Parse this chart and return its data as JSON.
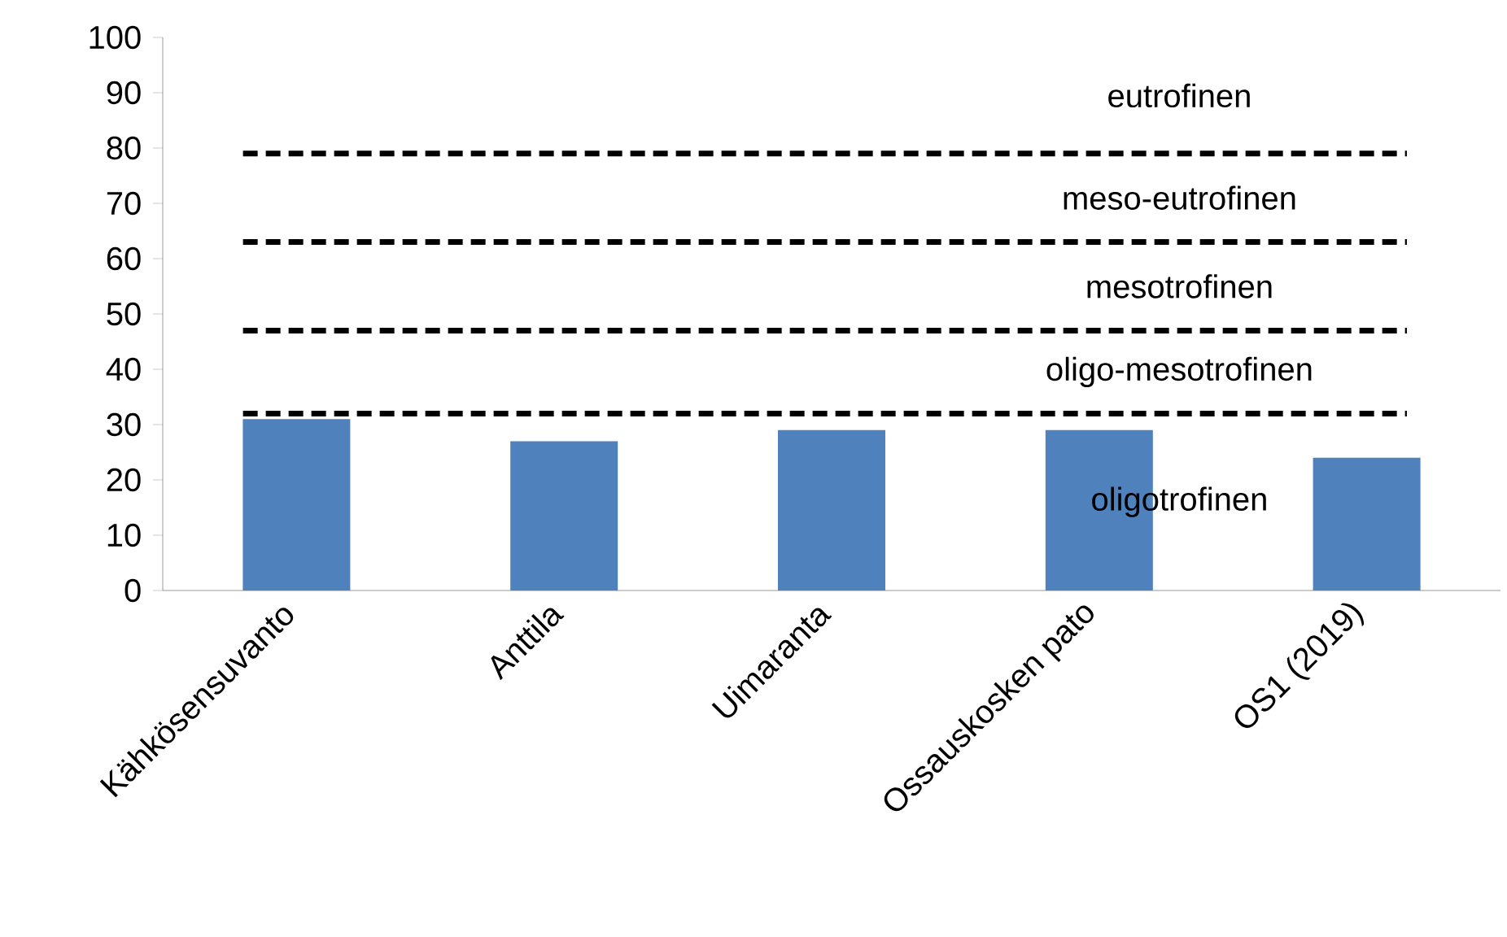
{
  "chart_data": {
    "type": "bar",
    "categories": [
      "Kähkösensuvanto",
      "Anttila",
      "Uimaranta",
      "Ossauskosken pato",
      "OS1 (2019)"
    ],
    "values": [
      31,
      27,
      29,
      29,
      24
    ],
    "color": "#4f81bd",
    "ylim": [
      0,
      100
    ],
    "yticks": [
      0,
      10,
      20,
      30,
      40,
      50,
      60,
      70,
      80,
      90,
      100
    ],
    "ref_lines": [
      {
        "axis": "y",
        "value": 79,
        "color": "#000000",
        "line_style": "dashed"
      },
      {
        "axis": "y",
        "value": 63,
        "color": "#000000",
        "line_style": "dashed"
      },
      {
        "axis": "y",
        "value": 47,
        "color": "#000000",
        "line_style": "dashed"
      },
      {
        "axis": "y",
        "value": 32,
        "color": "#000000",
        "line_style": "dashed"
      }
    ],
    "annotations": [
      "eutrofinen",
      "meso-eutrofinen",
      "mesotrofinen",
      "oligo-mesotrofinen",
      "oligotrofinen"
    ]
  }
}
